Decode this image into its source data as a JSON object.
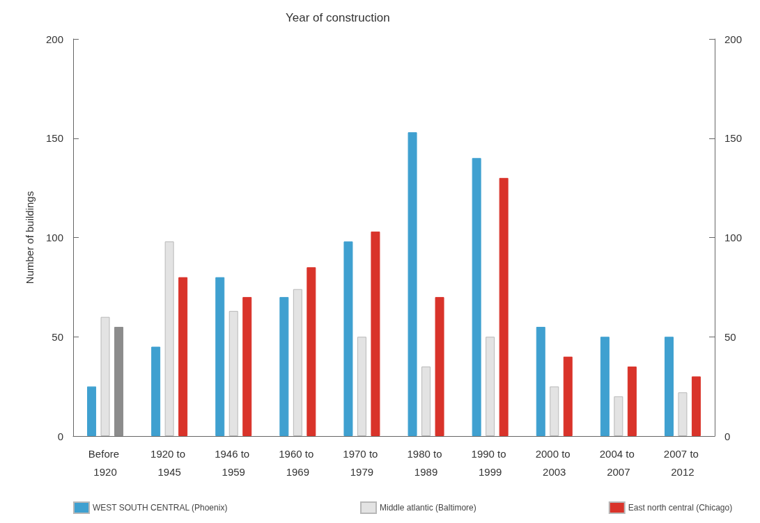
{
  "chart_data": {
    "type": "bar",
    "title": "Year of construction",
    "ylabel": "Number of buildings",
    "categories": [
      "Before 1920",
      "1920 to 1945",
      "1946 to 1959",
      "1960 to 1969",
      "1970 to 1979",
      "1980 to 1989",
      "1990 to 1999",
      "2000 to 2003",
      "2004 to 2007",
      "2007 to 2012"
    ],
    "series": [
      {
        "name": "WEST SOUTH CENTRAL (Phoenix)",
        "color": "#3fa0d0",
        "values": [
          25,
          45,
          80,
          70,
          98,
          153,
          140,
          55,
          50,
          50
        ]
      },
      {
        "name": "Middle atlantic (Baltimore)",
        "color": "#e3e3e3",
        "values": [
          60,
          98,
          63,
          74,
          50,
          35,
          50,
          25,
          20,
          22
        ]
      },
      {
        "name": "East north central (Chicago)",
        "color": "#d9332a",
        "colors": [
          "#8c8c8c",
          "#d9332a",
          "#d9332a",
          "#d9332a",
          "#d9332a",
          "#d9332a",
          "#d9332a",
          "#d9332a",
          "#d9332a",
          "#d9332a"
        ],
        "values": [
          55,
          80,
          70,
          85,
          103,
          70,
          130,
          40,
          35,
          30
        ]
      }
    ],
    "ylim": [
      0,
      200
    ],
    "yticks": [
      0,
      50,
      100,
      150,
      200
    ],
    "y2lim": [
      0,
      200
    ],
    "y2ticks": [
      0,
      50,
      100,
      150,
      200
    ],
    "grid": false,
    "legend": "bottom"
  }
}
